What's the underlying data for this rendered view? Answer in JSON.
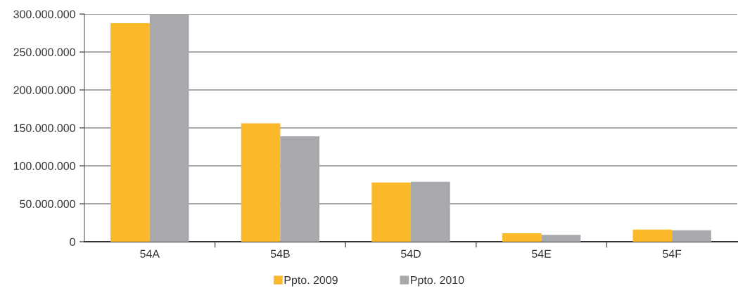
{
  "chart_data": {
    "type": "bar",
    "categories": [
      "54A",
      "54B",
      "54D",
      "54E",
      "54F"
    ],
    "series": [
      {
        "name": "Ppto. 2009",
        "color": "#fbb829",
        "values": [
          288000000,
          156000000,
          78000000,
          11000000,
          16000000
        ]
      },
      {
        "name": "Ppto. 2010",
        "color": "#a7a9ac",
        "values": [
          300000000,
          139000000,
          79000000,
          9000000,
          15000000
        ]
      }
    ],
    "ylim": [
      0,
      300000000
    ],
    "yticks": [
      0,
      {
        "value": 50000000,
        "label": "50.000.000"
      },
      {
        "value": 100000000,
        "label": "100.000.000"
      },
      {
        "value": 150000000,
        "label": "150.000.000"
      },
      {
        "value": 200000000,
        "label": "200.000.000"
      },
      {
        "value": 250000000,
        "label": "250.000.000"
      },
      {
        "value": 300000000,
        "label": "300.000.000"
      }
    ],
    "grid": "y",
    "legend": "bottom"
  }
}
